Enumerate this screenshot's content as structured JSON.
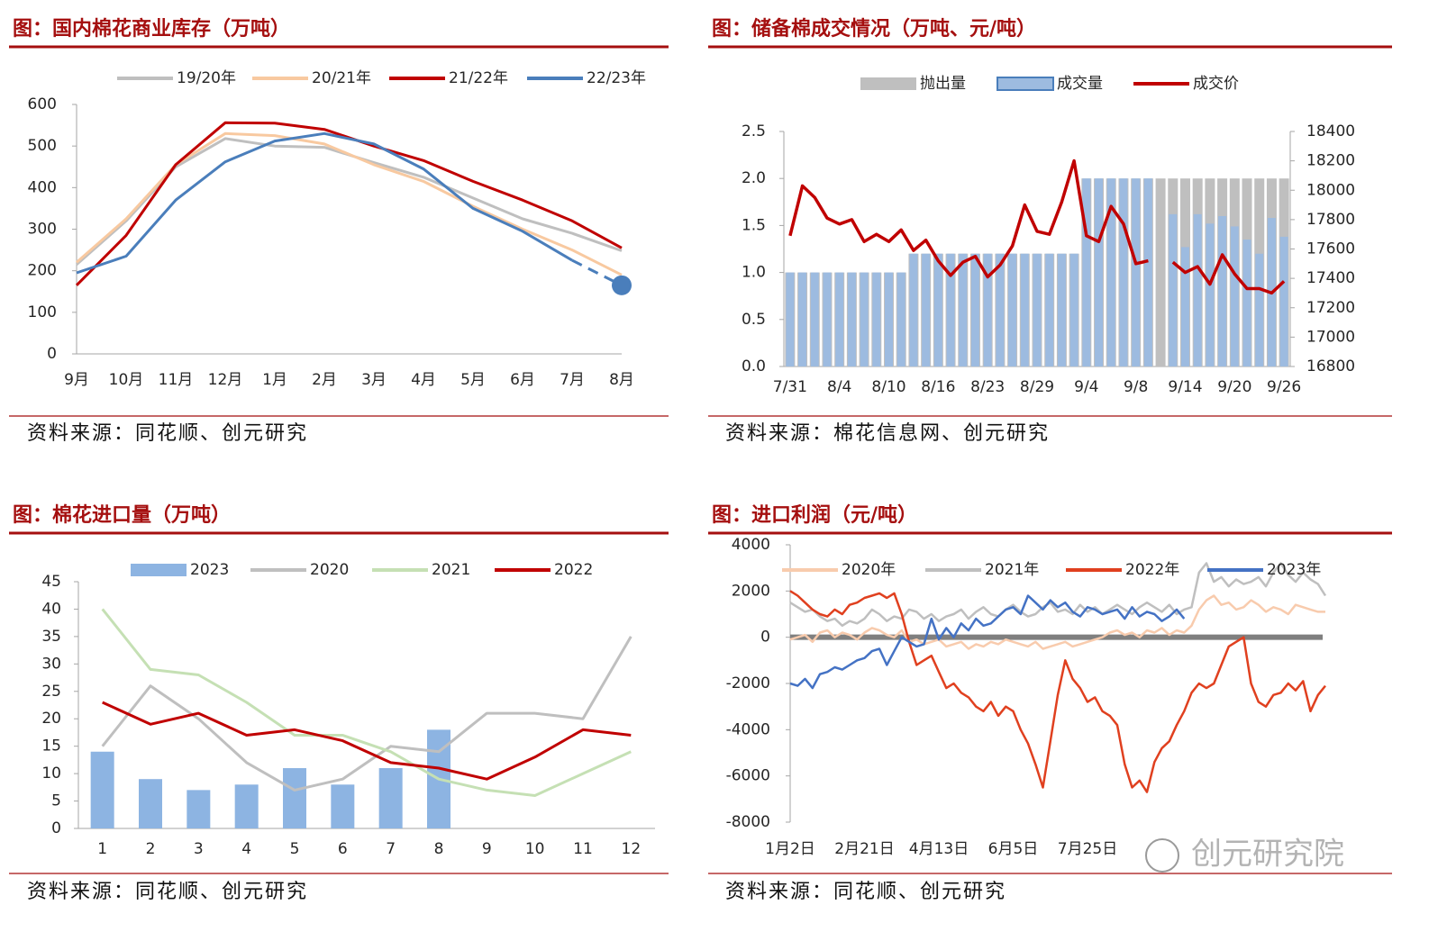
{
  "watermark": "创元研究院",
  "chart_data": [
    {
      "type": "line",
      "title": "图：国内棉花商业库存（万吨）",
      "source": "资料来源：同花顺、创元研究",
      "categories": [
        "9月",
        "10月",
        "11月",
        "12月",
        "1月",
        "2月",
        "3月",
        "4月",
        "5月",
        "6月",
        "7月",
        "8月"
      ],
      "ylim": [
        0,
        600
      ],
      "yticks": [
        0,
        100,
        200,
        300,
        400,
        500,
        600
      ],
      "series": [
        {
          "name": "19/20年",
          "color": "#bfbfbf",
          "type": "line",
          "values": [
            215,
            320,
            450,
            518,
            500,
            497,
            460,
            425,
            375,
            325,
            290,
            248
          ]
        },
        {
          "name": "20/21年",
          "color": "#f8c9a0",
          "type": "line",
          "values": [
            220,
            325,
            455,
            530,
            525,
            505,
            455,
            415,
            355,
            300,
            250,
            190
          ]
        },
        {
          "name": "21/22年",
          "color": "#c00000",
          "type": "line",
          "values": [
            165,
            285,
            455,
            556,
            555,
            540,
            500,
            465,
            415,
            370,
            320,
            255
          ]
        },
        {
          "name": "22/23年",
          "color": "#4a7ebb",
          "type": "line",
          "dashed_last": true,
          "values": [
            195,
            235,
            370,
            462,
            512,
            530,
            505,
            445,
            350,
            295,
            225,
            165
          ]
        }
      ]
    },
    {
      "type": "combo",
      "title": "图：储备棉成交情况（万吨、元/吨）",
      "source": "资料来源：棉花信息网、创元研究",
      "categories": [
        "7/31",
        null,
        null,
        null,
        "8/4",
        null,
        null,
        null,
        "8/10",
        null,
        null,
        null,
        "8/16",
        null,
        null,
        null,
        "8/23",
        null,
        null,
        null,
        "8/29",
        null,
        null,
        null,
        "9/4",
        null,
        null,
        null,
        "9/8",
        null,
        null,
        null,
        "9/14",
        null,
        null,
        null,
        "9/20",
        null,
        null,
        null,
        "9/26"
      ],
      "ylim": [
        0,
        2.5
      ],
      "yticks": [
        {
          "value": 0,
          "label": "0.0"
        },
        {
          "value": 0.5,
          "label": "0.5"
        },
        {
          "value": 1,
          "label": "1.0"
        },
        {
          "value": 1.5,
          "label": "1.5"
        },
        {
          "value": 2,
          "label": "2.0"
        },
        {
          "value": 2.5,
          "label": "2.5"
        }
      ],
      "y2lim": [
        16800,
        18400
      ],
      "y2ticks": [
        16800,
        17000,
        17200,
        17400,
        17600,
        17800,
        18000,
        18200,
        18400
      ],
      "series": [
        {
          "name": "抛出量",
          "color": "#bfbfbf",
          "type": "bar",
          "values": [
            1,
            1,
            1,
            1,
            1,
            1,
            1,
            1,
            1,
            1,
            1.2,
            1.2,
            1.2,
            1.2,
            1.2,
            1.2,
            1.2,
            1.2,
            1.2,
            1.2,
            1.2,
            1.2,
            1.2,
            1.2,
            2,
            2,
            2,
            2,
            2,
            2,
            2,
            2,
            2,
            2,
            2,
            2,
            2,
            2,
            2,
            2,
            2
          ]
        },
        {
          "name": "成交量",
          "color": "#9dbbe0",
          "type": "bar",
          "values": [
            1,
            1,
            1,
            1,
            1,
            1,
            1,
            1,
            1,
            1,
            1.2,
            1.2,
            1.2,
            1.2,
            1.2,
            1.2,
            1.2,
            1.2,
            1.2,
            1.2,
            1.2,
            1.2,
            1.2,
            1.2,
            2,
            2,
            2,
            2,
            2,
            2,
            null,
            1.62,
            1.27,
            1.62,
            1.52,
            1.6,
            1.49,
            1.35,
            1.2,
            1.58,
            1.38
          ]
        },
        {
          "name": "成交价",
          "color": "#c00000",
          "type": "line",
          "axis": "y2",
          "values": [
            17690,
            18030,
            17950,
            17810,
            17770,
            17800,
            17650,
            17700,
            17650,
            17730,
            17590,
            17660,
            17520,
            17420,
            17510,
            17550,
            17410,
            17490,
            17620,
            17900,
            17720,
            17700,
            17920,
            18200,
            17690,
            17650,
            17890,
            17770,
            17500,
            17520,
            null,
            17510,
            17440,
            17480,
            17360,
            17560,
            17430,
            17330,
            17330,
            17300,
            17380
          ]
        }
      ]
    },
    {
      "type": "combo",
      "title": "图：棉花进口量（万吨）",
      "source": "资料来源：同花顺、创元研究",
      "categories": [
        "1",
        "2",
        "3",
        "4",
        "5",
        "6",
        "7",
        "8",
        "9",
        "10",
        "11",
        "12"
      ],
      "ylim": [
        0,
        45
      ],
      "yticks": [
        0,
        5,
        10,
        15,
        20,
        25,
        30,
        35,
        40,
        45
      ],
      "series": [
        {
          "name": "2023",
          "color": "#8db4e2",
          "type": "bar",
          "values": [
            14,
            9,
            7,
            8,
            11,
            8,
            11,
            18,
            null,
            null,
            null,
            null
          ]
        },
        {
          "name": "2020",
          "color": "#bfbfbf",
          "type": "line",
          "values": [
            15,
            26,
            20,
            12,
            7,
            9,
            15,
            14,
            21,
            21,
            20,
            35
          ]
        },
        {
          "name": "2021",
          "color": "#c5e0b4",
          "type": "line",
          "values": [
            40,
            29,
            28,
            23,
            17,
            17,
            14,
            9,
            7,
            6,
            10,
            14
          ]
        },
        {
          "name": "2022",
          "color": "#c00000",
          "type": "line",
          "values": [
            23,
            19,
            21,
            17,
            18,
            16,
            12,
            11,
            9,
            13,
            18,
            17
          ]
        }
      ]
    },
    {
      "type": "line",
      "title": "图：进口利润（元/吨）",
      "source": "资料来源：同花顺、创元研究",
      "categories": [
        "1月2日",
        null,
        null,
        null,
        null,
        null,
        null,
        null,
        null,
        null,
        "2月21日",
        null,
        null,
        null,
        null,
        null,
        null,
        null,
        null,
        null,
        "4月13日",
        null,
        null,
        null,
        null,
        null,
        null,
        null,
        null,
        null,
        "6月5日",
        null,
        null,
        null,
        null,
        null,
        null,
        null,
        null,
        null,
        "7月25日",
        null,
        null,
        null,
        null,
        null,
        null,
        null,
        null,
        null,
        null,
        null,
        null,
        null,
        null,
        null,
        null,
        null,
        null,
        null,
        null,
        null,
        null,
        null,
        null,
        null,
        null,
        null,
        null,
        null,
        null,
        null,
        null
      ],
      "ylim": [
        -8000,
        4000
      ],
      "yticks": [
        -8000,
        -6000,
        -4000,
        -2000,
        0,
        2000,
        4000
      ],
      "series": [
        {
          "name": "2020年",
          "color": "#f8cbad",
          "type": "line",
          "values": [
            -100,
            0,
            100,
            -200,
            200,
            300,
            0,
            200,
            100,
            -100,
            200,
            400,
            300,
            100,
            0,
            300,
            -200,
            -100,
            -300,
            -200,
            -100,
            -400,
            -300,
            -200,
            -500,
            -300,
            -400,
            -200,
            -300,
            -100,
            -200,
            -300,
            -400,
            -200,
            -500,
            -400,
            -300,
            -200,
            -400,
            -300,
            -200,
            -100,
            0,
            200,
            300,
            100,
            200,
            0,
            300,
            200,
            400,
            100,
            300,
            200,
            500,
            1200,
            1600,
            1800,
            1400,
            1500,
            1200,
            1300,
            1600,
            1400,
            1100,
            1300,
            1200,
            1000,
            1400,
            1300,
            1200,
            1100,
            1100
          ]
        },
        {
          "name": "2021年",
          "color": "#bfbfbf",
          "type": "line",
          "values": [
            1500,
            1300,
            1100,
            1200,
            900,
            700,
            800,
            500,
            700,
            600,
            800,
            1200,
            1000,
            700,
            900,
            800,
            1200,
            1100,
            800,
            1000,
            700,
            900,
            1000,
            1200,
            800,
            1100,
            1300,
            1000,
            900,
            1200,
            1400,
            1100,
            900,
            1000,
            1300,
            1500,
            1100,
            1200,
            1000,
            1400,
            1100,
            1300,
            1000,
            1200,
            1400,
            1200,
            1000,
            1300,
            1500,
            1300,
            1100,
            1400,
            1000,
            1200,
            1300,
            2800,
            3200,
            2400,
            2600,
            2200,
            2500,
            2300,
            2400,
            2600,
            2200,
            2800,
            3200,
            2700,
            2400,
            2800,
            2500,
            2300,
            1800
          ]
        },
        {
          "name": "2022年",
          "color": "#e0401f",
          "type": "line",
          "values": [
            2000,
            1800,
            1500,
            1200,
            1000,
            900,
            1200,
            1000,
            1400,
            1500,
            1700,
            1800,
            1900,
            1700,
            1900,
            1000,
            -200,
            -1200,
            -1000,
            -800,
            -1500,
            -2200,
            -2000,
            -2400,
            -2600,
            -3000,
            -3200,
            -2800,
            -3400,
            -3000,
            -3200,
            -4000,
            -4600,
            -5500,
            -6500,
            -4500,
            -2500,
            -1000,
            -1800,
            -2200,
            -2800,
            -2600,
            -3200,
            -3400,
            -3800,
            -5500,
            -6500,
            -6200,
            -6700,
            -5400,
            -4800,
            -4500,
            -3800,
            -3200,
            -2400,
            -2000,
            -2200,
            -2000,
            -1200,
            -400,
            -200,
            0,
            -2000,
            -2800,
            -3000,
            -2500,
            -2400,
            -2000,
            -2300,
            -1900,
            -3200,
            -2500,
            -2100
          ]
        },
        {
          "name": "2023年",
          "color": "#4472c4",
          "type": "line",
          "values": [
            -2000,
            -2100,
            -1800,
            -2200,
            -1600,
            -1500,
            -1300,
            -1400,
            -1200,
            -1000,
            -900,
            -600,
            -500,
            -1200,
            -600,
            0,
            -200,
            -400,
            -300,
            800,
            -100,
            400,
            0,
            600,
            300,
            800,
            500,
            600,
            900,
            1200,
            1300,
            1000,
            1800,
            1500,
            1200,
            1600,
            1300,
            1500,
            1100,
            900,
            1300,
            1200,
            1000,
            1100,
            1200,
            800,
            1300,
            900,
            1100,
            1000,
            700,
            900,
            1200,
            800,
            null,
            null,
            null,
            null,
            null,
            null,
            null,
            null,
            null,
            null,
            null,
            null,
            null,
            null,
            null,
            null,
            null,
            null,
            null
          ]
        }
      ]
    }
  ]
}
